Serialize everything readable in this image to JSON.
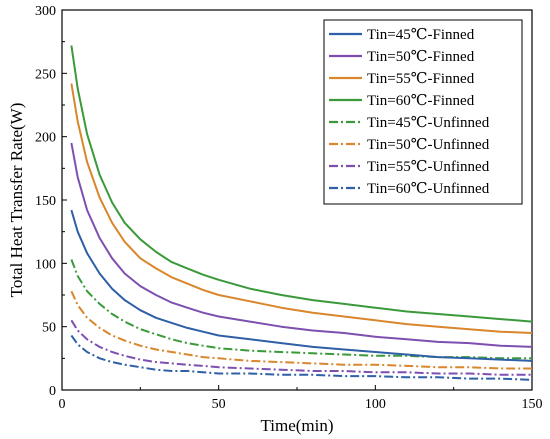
{
  "chart_data": {
    "type": "line",
    "title": "",
    "xlabel": "Time(min)",
    "ylabel": "Total Heat Transfer Rate(W)",
    "xlim": [
      0,
      150
    ],
    "ylim": [
      0,
      300
    ],
    "x_ticks": [
      0,
      50,
      100,
      150
    ],
    "y_ticks": [
      0,
      50,
      100,
      150,
      200,
      250,
      300
    ],
    "grid": false,
    "legend_position": "top-right",
    "series": [
      {
        "name": "Tin=45℃-Finned",
        "color": "#2f5fa6",
        "dash": "solid",
        "x": [
          3,
          5,
          8,
          12,
          16,
          20,
          25,
          30,
          35,
          40,
          45,
          50,
          60,
          70,
          80,
          90,
          100,
          110,
          120,
          130,
          140,
          150
        ],
        "y": [
          142,
          125,
          108,
          92,
          80,
          71,
          63,
          57,
          53,
          49,
          46,
          43,
          40,
          37,
          34,
          32,
          30,
          28,
          26,
          25,
          24,
          23
        ]
      },
      {
        "name": "Tin=50℃-Finned",
        "color": "#7d4fb0",
        "dash": "solid",
        "x": [
          3,
          5,
          8,
          12,
          16,
          20,
          25,
          30,
          35,
          40,
          45,
          50,
          60,
          70,
          80,
          90,
          100,
          110,
          120,
          130,
          140,
          150
        ],
        "y": [
          195,
          168,
          142,
          120,
          104,
          92,
          82,
          75,
          69,
          65,
          61,
          58,
          54,
          50,
          47,
          45,
          42,
          40,
          38,
          37,
          35,
          34
        ]
      },
      {
        "name": "Tin=55℃-Finned",
        "color": "#d9862c",
        "dash": "solid",
        "x": [
          3,
          5,
          8,
          12,
          16,
          20,
          25,
          30,
          35,
          40,
          45,
          50,
          60,
          70,
          80,
          90,
          100,
          110,
          120,
          130,
          140,
          150
        ],
        "y": [
          242,
          212,
          180,
          152,
          132,
          117,
          104,
          96,
          89,
          84,
          79,
          75,
          70,
          65,
          61,
          58,
          55,
          52,
          50,
          48,
          46,
          45
        ]
      },
      {
        "name": "Tin=60℃-Finned",
        "color": "#3a9a3a",
        "dash": "solid",
        "x": [
          3,
          5,
          8,
          12,
          16,
          20,
          25,
          30,
          35,
          40,
          45,
          50,
          60,
          70,
          80,
          90,
          100,
          110,
          120,
          130,
          140,
          150
        ],
        "y": [
          272,
          238,
          202,
          170,
          148,
          132,
          119,
          109,
          101,
          96,
          91,
          87,
          80,
          75,
          71,
          68,
          65,
          62,
          60,
          58,
          56,
          54
        ]
      },
      {
        "name": "Tin=45℃-Unfinned",
        "color": "#3a9a3a",
        "dash": "dashdot",
        "x": [
          3,
          5,
          8,
          12,
          16,
          20,
          25,
          30,
          35,
          40,
          45,
          50,
          60,
          70,
          80,
          90,
          100,
          110,
          120,
          130,
          140,
          150
        ],
        "y": [
          103,
          90,
          78,
          68,
          60,
          54,
          48,
          44,
          40,
          37,
          35,
          33,
          31,
          30,
          29,
          28,
          27,
          27,
          26,
          26,
          25,
          25
        ]
      },
      {
        "name": "Tin=50℃-Unfinned",
        "color": "#d9862c",
        "dash": "dashdot",
        "x": [
          3,
          5,
          8,
          12,
          16,
          20,
          25,
          30,
          35,
          40,
          45,
          50,
          60,
          70,
          80,
          90,
          100,
          110,
          120,
          130,
          140,
          150
        ],
        "y": [
          78,
          67,
          57,
          49,
          43,
          39,
          35,
          32,
          30,
          28,
          26,
          25,
          23,
          22,
          21,
          20,
          20,
          19,
          18,
          18,
          17,
          17
        ]
      },
      {
        "name": "Tin=55℃-Unfinned",
        "color": "#7d4fb0",
        "dash": "dashdot",
        "x": [
          3,
          5,
          8,
          12,
          16,
          20,
          25,
          30,
          35,
          40,
          45,
          50,
          60,
          70,
          80,
          90,
          100,
          110,
          120,
          130,
          140,
          150
        ],
        "y": [
          55,
          47,
          40,
          34,
          30,
          27,
          24,
          22,
          21,
          20,
          19,
          18,
          17,
          16,
          15,
          15,
          14,
          14,
          13,
          13,
          12,
          12
        ]
      },
      {
        "name": "Tin=60℃-Unfinned",
        "color": "#2f5fa6",
        "dash": "dashdot",
        "x": [
          3,
          5,
          8,
          12,
          16,
          20,
          25,
          30,
          35,
          40,
          45,
          50,
          60,
          70,
          80,
          90,
          100,
          110,
          120,
          130,
          140,
          150
        ],
        "y": [
          43,
          36,
          30,
          25,
          22,
          20,
          18,
          16,
          15,
          15,
          14,
          13,
          13,
          12,
          12,
          11,
          11,
          10,
          10,
          9,
          9,
          8
        ]
      }
    ]
  }
}
